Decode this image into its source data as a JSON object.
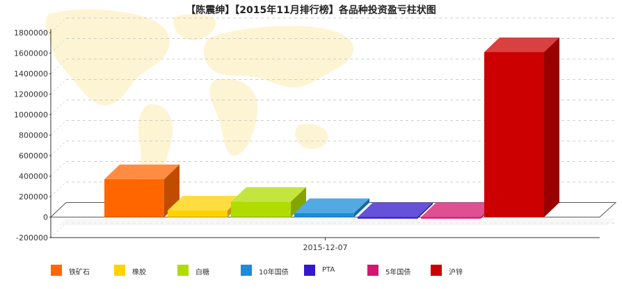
{
  "chart_data": {
    "type": "bar",
    "title": "【陈震绅】【2015年11月排行榜】各品种投资盈亏柱状图",
    "categories": [
      "2015-12-07"
    ],
    "series": [
      {
        "name": "铁矿石",
        "values": [
          370000
        ],
        "color": "#ff6600"
      },
      {
        "name": "橡胶",
        "values": [
          65000
        ],
        "color": "#ffd200"
      },
      {
        "name": "白糖",
        "values": [
          150000
        ],
        "color": "#b0dc00"
      },
      {
        "name": "10年国债",
        "values": [
          40000
        ],
        "color": "#1a8cd8"
      },
      {
        "name": "PTA",
        "values": [
          -15000
        ],
        "color": "#3318cc"
      },
      {
        "name": "5年国债",
        "values": [
          -15000
        ],
        "color": "#d4166f"
      },
      {
        "name": "沪锌",
        "values": [
          1610000
        ],
        "color": "#cc0000"
      }
    ],
    "yticks": [
      "1800000",
      "1600000",
      "1400000",
      "1200000",
      "1000000",
      "800000",
      "600000",
      "400000",
      "200000",
      "0",
      "-200000"
    ],
    "ylim": [
      -200000,
      1800000
    ],
    "grid": true,
    "legend_position": "bottom",
    "background": "world-map"
  }
}
